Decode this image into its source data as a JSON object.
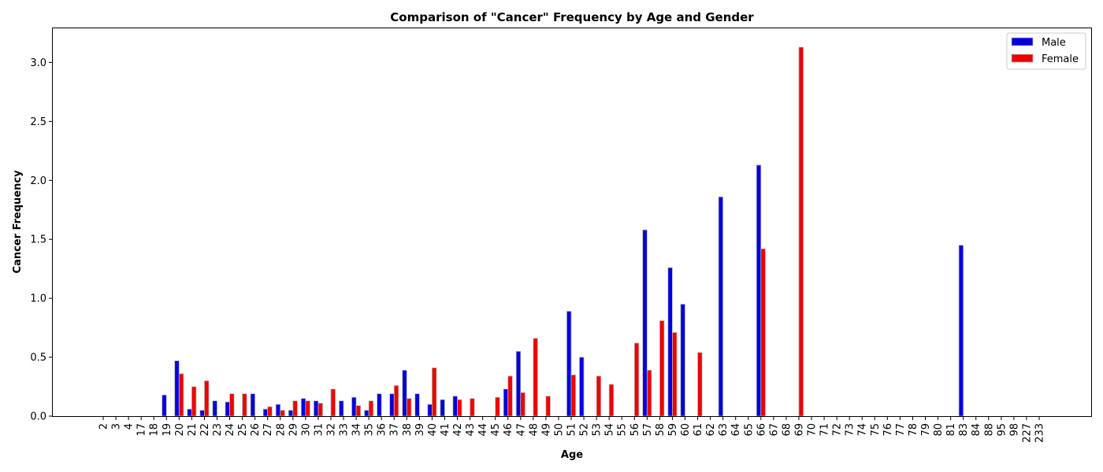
{
  "chart_data": {
    "type": "bar",
    "title": "Comparison of \"Cancer\" Frequency by Age and Gender",
    "xlabel": "Age",
    "ylabel": "Cancer Frequency",
    "ylim": [
      0,
      3.29
    ],
    "yticks": [
      "0.0",
      "0.5",
      "1.0",
      "1.5",
      "2.0",
      "2.5",
      "3.0"
    ],
    "grid": false,
    "legend_position": "top-right",
    "categories": [
      "2",
      "3",
      "4",
      "17",
      "18",
      "19",
      "20",
      "21",
      "22",
      "23",
      "24",
      "25",
      "26",
      "27",
      "28",
      "29",
      "30",
      "31",
      "32",
      "33",
      "34",
      "35",
      "36",
      "37",
      "38",
      "39",
      "40",
      "41",
      "42",
      "43",
      "44",
      "45",
      "46",
      "47",
      "48",
      "49",
      "50",
      "51",
      "52",
      "53",
      "54",
      "55",
      "56",
      "57",
      "58",
      "59",
      "60",
      "61",
      "62",
      "63",
      "64",
      "65",
      "66",
      "67",
      "68",
      "69",
      "70",
      "71",
      "72",
      "73",
      "74",
      "75",
      "76",
      "77",
      "78",
      "79",
      "80",
      "81",
      "83",
      "84",
      "88",
      "95",
      "98",
      "227",
      "233"
    ],
    "series": [
      {
        "name": "Male",
        "color": "#0000dd",
        "values": [
          0,
          0,
          0,
          0,
          0,
          0.18,
          0.47,
          0.06,
          0.05,
          0.13,
          0.12,
          0,
          0.19,
          0.06,
          0.1,
          0.05,
          0.15,
          0.13,
          0,
          0.13,
          0.16,
          0.05,
          0.19,
          0.19,
          0.39,
          0.19,
          0.1,
          0.14,
          0.17,
          0,
          0,
          0,
          0.23,
          0.55,
          0,
          0,
          0,
          0.89,
          0.5,
          0,
          0,
          0,
          0,
          1.58,
          0,
          1.26,
          0.95,
          0,
          0,
          1.86,
          0,
          0,
          2.13,
          0,
          0,
          0,
          0,
          0,
          0,
          0,
          0,
          0,
          0,
          0,
          0,
          0,
          0,
          0,
          1.45,
          0,
          0,
          0,
          0,
          0,
          0
        ]
      },
      {
        "name": "Female",
        "color": "#ee0000",
        "values": [
          0,
          0,
          0,
          0,
          0,
          0,
          0.36,
          0.25,
          0.3,
          0,
          0.19,
          0.19,
          0,
          0.08,
          0.05,
          0.13,
          0.13,
          0.11,
          0.23,
          0,
          0.09,
          0.13,
          0,
          0.26,
          0.15,
          0,
          0.41,
          0,
          0.14,
          0.15,
          0,
          0.16,
          0.34,
          0.2,
          0.66,
          0.17,
          0,
          0.35,
          0,
          0.34,
          0.27,
          0,
          0.62,
          0.39,
          0.81,
          0.71,
          0,
          0.54,
          0,
          0,
          0,
          0,
          1.42,
          0,
          0,
          3.13,
          0,
          0,
          0,
          0,
          0,
          0,
          0,
          0,
          0,
          0,
          0,
          0,
          0,
          0,
          0,
          0,
          0,
          0,
          0
        ]
      }
    ]
  }
}
